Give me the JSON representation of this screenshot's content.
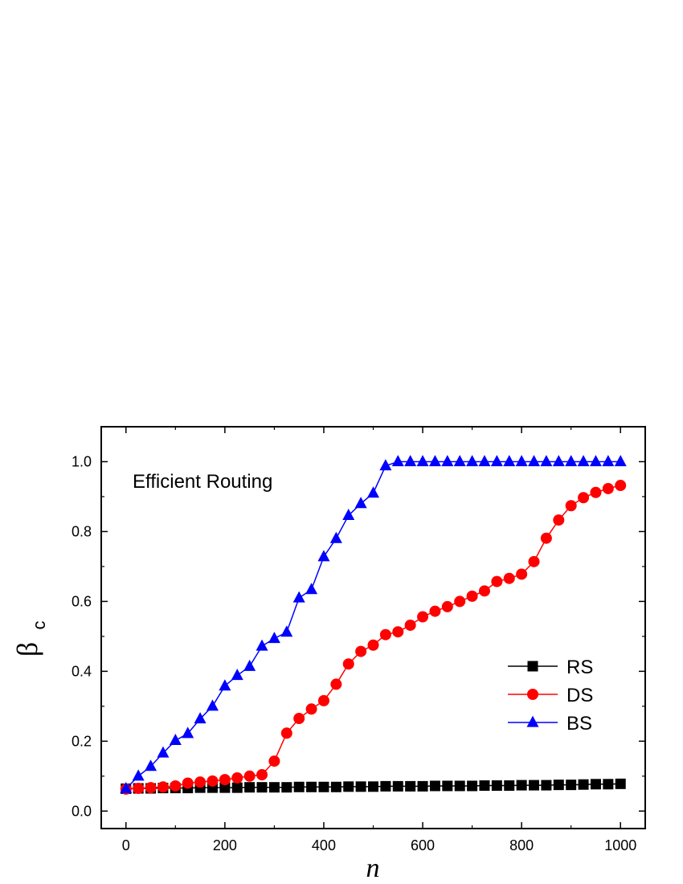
{
  "chart_data": {
    "type": "line",
    "title": "",
    "annotation": "Efficient Routing",
    "xlabel": "n",
    "ylabel_symbol": "β",
    "ylabel_subscript": "c",
    "xlim": [
      -50,
      1050
    ],
    "ylim": [
      -0.05,
      1.1
    ],
    "xticks": [
      0,
      200,
      400,
      600,
      800,
      1000
    ],
    "xtick_labels": [
      "0",
      "200",
      "400",
      "600",
      "800",
      "1000"
    ],
    "yticks": [
      0.0,
      0.2,
      0.4,
      0.6,
      0.8,
      1.0
    ],
    "ytick_labels": [
      "0.0",
      "0.2",
      "0.4",
      "0.6",
      "0.8",
      "1.0"
    ],
    "grid": false,
    "legend_position": "bottom-right",
    "x": [
      0,
      25,
      50,
      75,
      100,
      125,
      150,
      175,
      200,
      225,
      250,
      275,
      300,
      325,
      350,
      375,
      400,
      425,
      450,
      475,
      500,
      525,
      550,
      575,
      600,
      625,
      650,
      675,
      700,
      725,
      750,
      775,
      800,
      825,
      850,
      875,
      900,
      925,
      950,
      975,
      1000
    ],
    "series": [
      {
        "name": "RS",
        "color": "#000000",
        "marker": "square",
        "values": [
          0.064,
          0.065,
          0.065,
          0.066,
          0.066,
          0.066,
          0.067,
          0.067,
          0.067,
          0.067,
          0.068,
          0.068,
          0.068,
          0.068,
          0.069,
          0.069,
          0.069,
          0.069,
          0.07,
          0.07,
          0.07,
          0.071,
          0.071,
          0.071,
          0.071,
          0.072,
          0.072,
          0.072,
          0.072,
          0.073,
          0.073,
          0.073,
          0.074,
          0.074,
          0.074,
          0.075,
          0.075,
          0.076,
          0.077,
          0.077,
          0.078
        ]
      },
      {
        "name": "DS",
        "color": "#ff0000",
        "marker": "circle",
        "values": [
          0.063,
          0.065,
          0.067,
          0.069,
          0.072,
          0.08,
          0.083,
          0.086,
          0.09,
          0.095,
          0.1,
          0.104,
          0.143,
          0.223,
          0.265,
          0.292,
          0.316,
          0.363,
          0.421,
          0.457,
          0.475,
          0.505,
          0.513,
          0.532,
          0.556,
          0.572,
          0.585,
          0.6,
          0.615,
          0.63,
          0.657,
          0.666,
          0.678,
          0.714,
          0.781,
          0.833,
          0.874,
          0.897,
          0.912,
          0.923,
          0.932
        ]
      },
      {
        "name": "BS",
        "color": "#0000ff",
        "marker": "triangle",
        "values": [
          0.064,
          0.1,
          0.128,
          0.166,
          0.202,
          0.222,
          0.264,
          0.3,
          0.358,
          0.388,
          0.414,
          0.472,
          0.494,
          0.512,
          0.61,
          0.634,
          0.728,
          0.78,
          0.846,
          0.88,
          0.91,
          0.988,
          1.0,
          1.0,
          1.0,
          1.0,
          1.0,
          1.0,
          1.0,
          1.0,
          1.0,
          1.0,
          1.0,
          1.0,
          1.0,
          1.0,
          1.0,
          1.0,
          1.0,
          1.0,
          1.0
        ]
      }
    ]
  }
}
